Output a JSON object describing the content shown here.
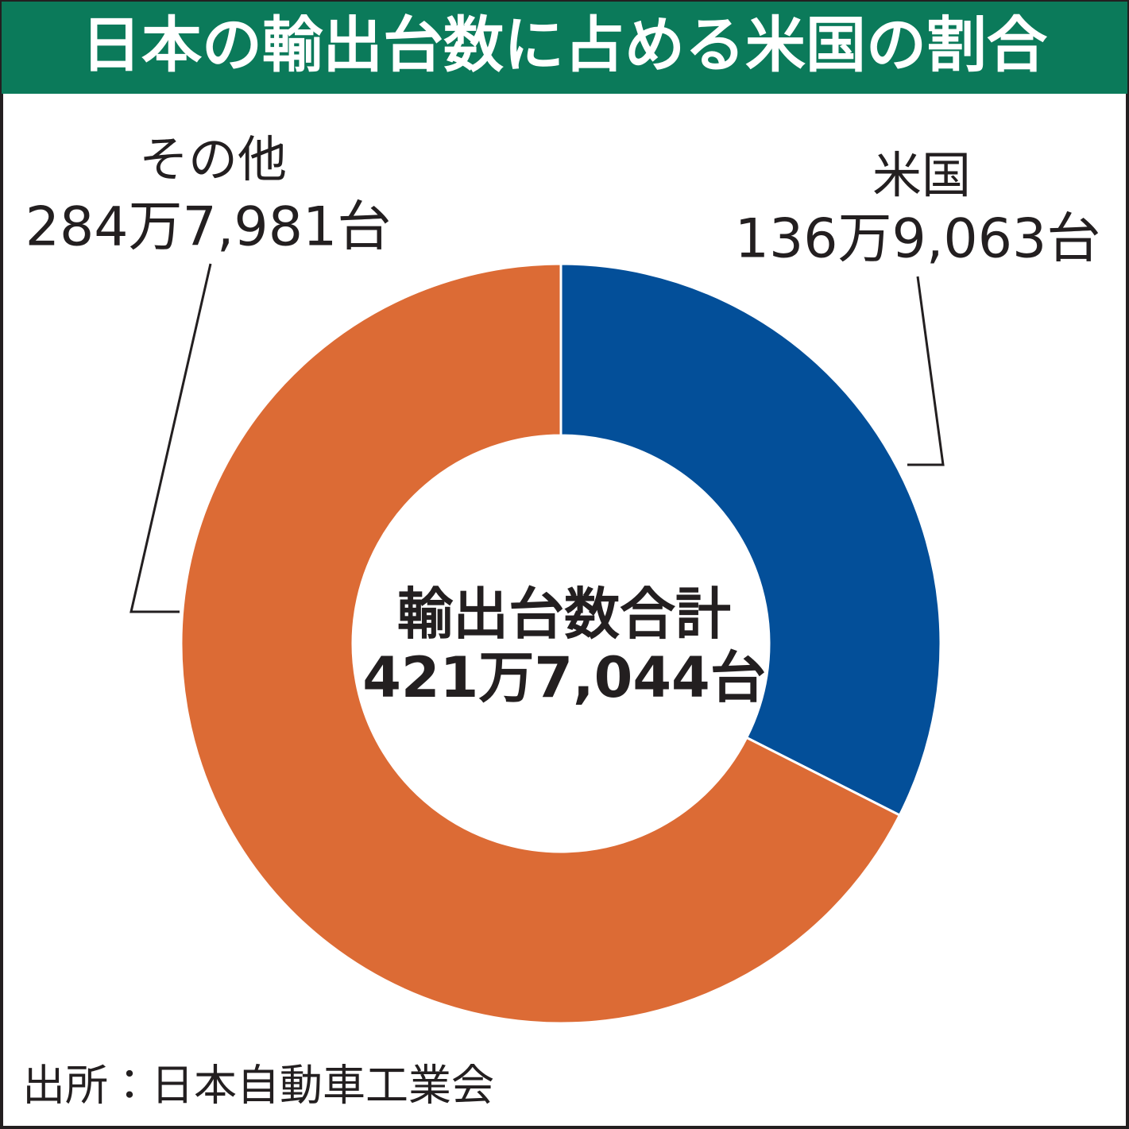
{
  "chart_data": {
    "type": "pie",
    "title": "日本の輸出台数に占める米国の割合",
    "categories": [
      "米国",
      "その他"
    ],
    "values": [
      1369063,
      2847981
    ],
    "value_labels": [
      "136万9,063台",
      "284万7,981台"
    ],
    "colors": [
      "#034f99",
      "#dc6b35"
    ],
    "donut": true,
    "center_label": "輸出台数合計",
    "total": {
      "value": 4217044,
      "label": "421万7,044台"
    },
    "source": "出所：日本自動車工業会"
  }
}
